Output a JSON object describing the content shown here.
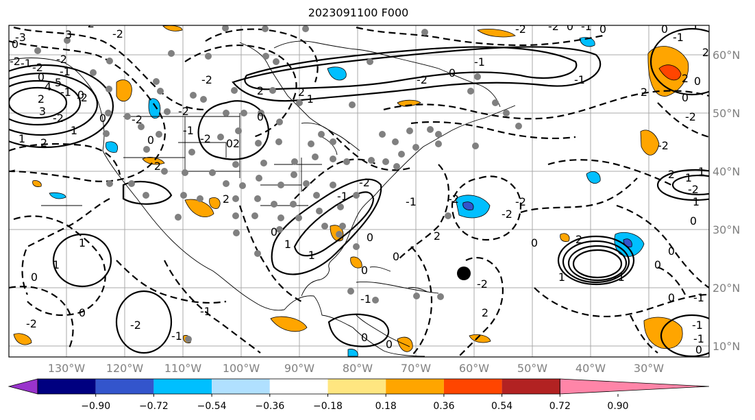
{
  "title": "2023091100 F000",
  "axes": {
    "lon_labels": [
      "130°W",
      "120°W",
      "110°W",
      "100°W",
      "90°W",
      "80°W",
      "70°W",
      "60°W",
      "50°W",
      "40°W",
      "30°W"
    ],
    "lat_labels": [
      "60°N",
      "50°N",
      "40°N",
      "30°N",
      "20°N",
      "10°N"
    ]
  },
  "colorbar": {
    "tick_labels": [
      "−0.90",
      "−0.72",
      "−0.54",
      "−0.36",
      "−0.18",
      "0.18",
      "0.36",
      "0.54",
      "0.72",
      "0.90"
    ],
    "colors": [
      "#9933cc",
      "#000080",
      "#3355cc",
      "#00bfff",
      "#b0e0ff",
      "#ffffff",
      "#ffe680",
      "#ffa500",
      "#ff4500",
      "#b22222",
      "#ff85a8"
    ]
  },
  "contour_labels": [
    "0",
    "-2",
    "-1",
    "-2",
    "3",
    "-2",
    "-2",
    "-1",
    "0",
    "-2",
    "-2",
    "0",
    "-2",
    "2",
    "-3",
    "-2",
    "-1",
    "0",
    "4",
    "5",
    "3",
    "1",
    "2",
    "1",
    "0",
    "2",
    "-1",
    "-2",
    "0",
    "2",
    "2",
    "-2",
    "-2",
    "0",
    "2",
    "-1",
    "-2",
    "0",
    "-1",
    "-2",
    "-2",
    "0",
    "-1",
    "0",
    "-1",
    "2",
    "-2",
    "0",
    "-2",
    "2",
    "1",
    "-2",
    "1",
    "1",
    "1",
    "1",
    "0",
    "-2",
    "0",
    "-2",
    "-1",
    "-1",
    "-1",
    "-2",
    "-1",
    "0",
    "0",
    "-2",
    "-2",
    "0",
    "1",
    "2",
    "-1",
    "0",
    "0",
    "0",
    "0",
    "-1",
    "-1",
    "-1",
    "0",
    "0",
    "1",
    "2",
    "-1",
    "2",
    "0",
    "-2",
    "-2",
    "2",
    "2",
    "-1",
    "0",
    "0",
    "0",
    "-1",
    "1",
    "0",
    "2"
  ],
  "storm_marker": {
    "name": "hurricane-center",
    "lon": -62.2,
    "lat": 22.3
  }
}
